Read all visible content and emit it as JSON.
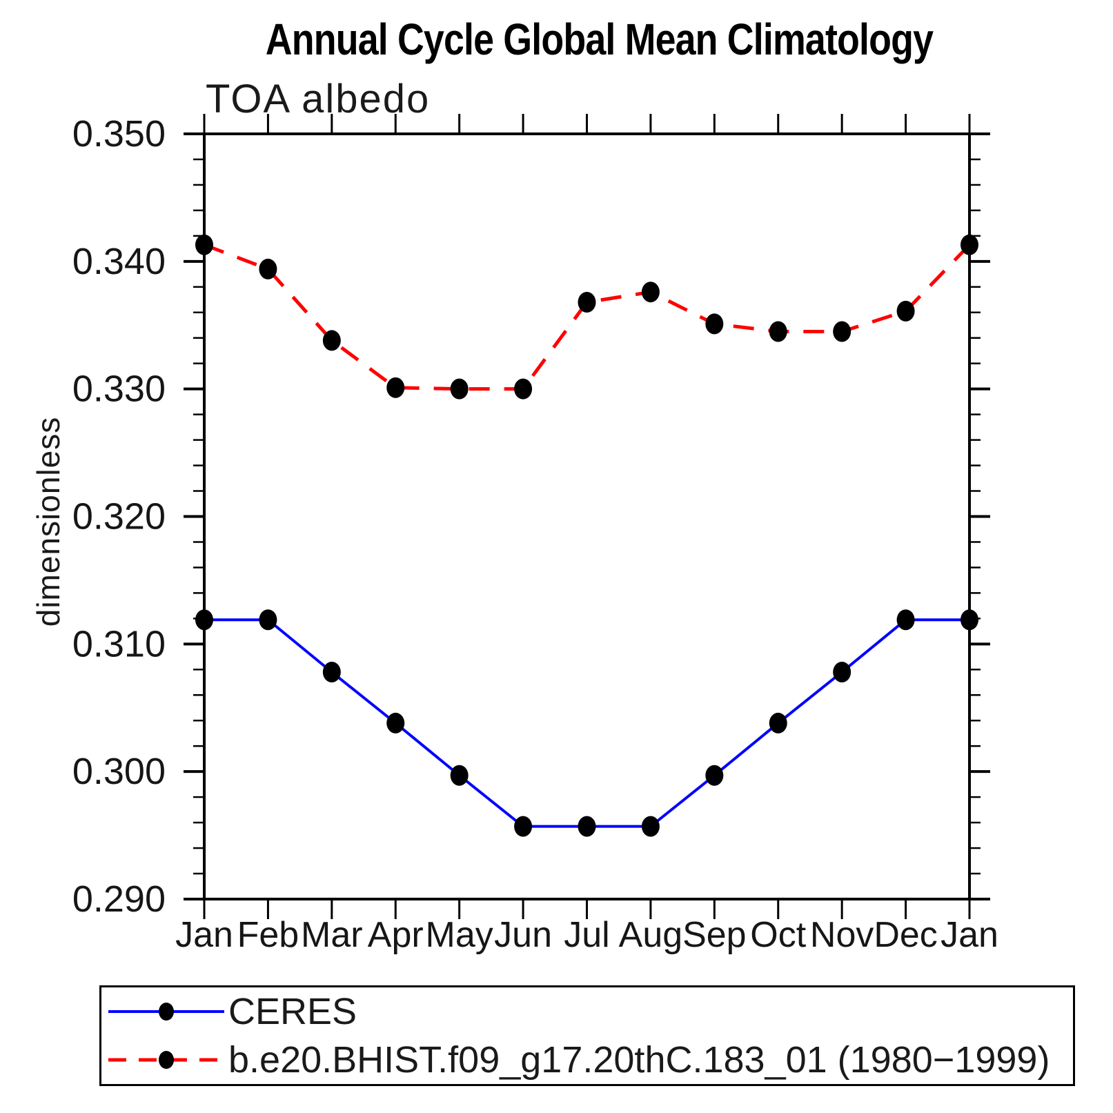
{
  "title": "Annual Cycle Global Mean Climatology",
  "subtitle": "TOA albedo",
  "y_axis_label": "dimensionless",
  "colors": {
    "ceres_line": "#0000ff",
    "model_line": "#ff0000",
    "marker": "#000000",
    "axis": "#000000"
  },
  "chart_data": {
    "type": "line",
    "title": "Annual Cycle Global Mean Climatology",
    "subtitle": "TOA albedo",
    "xlabel": "",
    "ylabel": "dimensionless",
    "categories": [
      "Jan",
      "Feb",
      "Mar",
      "Apr",
      "May",
      "Jun",
      "Jul",
      "Aug",
      "Sep",
      "Oct",
      "Nov",
      "Dec",
      "Jan"
    ],
    "ylim": [
      0.29,
      0.35
    ],
    "y_major_step": 0.01,
    "y_minor_step": 0.002,
    "y_tick_labels": [
      "0.290",
      "0.300",
      "0.310",
      "0.320",
      "0.330",
      "0.340",
      "0.350"
    ],
    "grid": false,
    "legend_position": "bottom-left",
    "series": [
      {
        "name": "CERES",
        "color": "#0000ff",
        "line_style": "solid",
        "marker": "filled-circle",
        "marker_color": "#000000",
        "values": [
          0.3119,
          0.3119,
          0.3078,
          0.3038,
          0.2997,
          0.2957,
          0.2957,
          0.2957,
          0.2997,
          0.3038,
          0.3078,
          0.3119,
          0.3119
        ]
      },
      {
        "name": "b.e20.BHIST.f09_g17.20thC.183_01 (1980−1999)",
        "color": "#ff0000",
        "line_style": "dashed",
        "marker": "filled-circle",
        "marker_color": "#000000",
        "values": [
          0.3413,
          0.3394,
          0.3338,
          0.3301,
          0.33,
          0.33,
          0.3368,
          0.3376,
          0.3351,
          0.3345,
          0.3345,
          0.3361,
          0.3413
        ]
      }
    ]
  }
}
